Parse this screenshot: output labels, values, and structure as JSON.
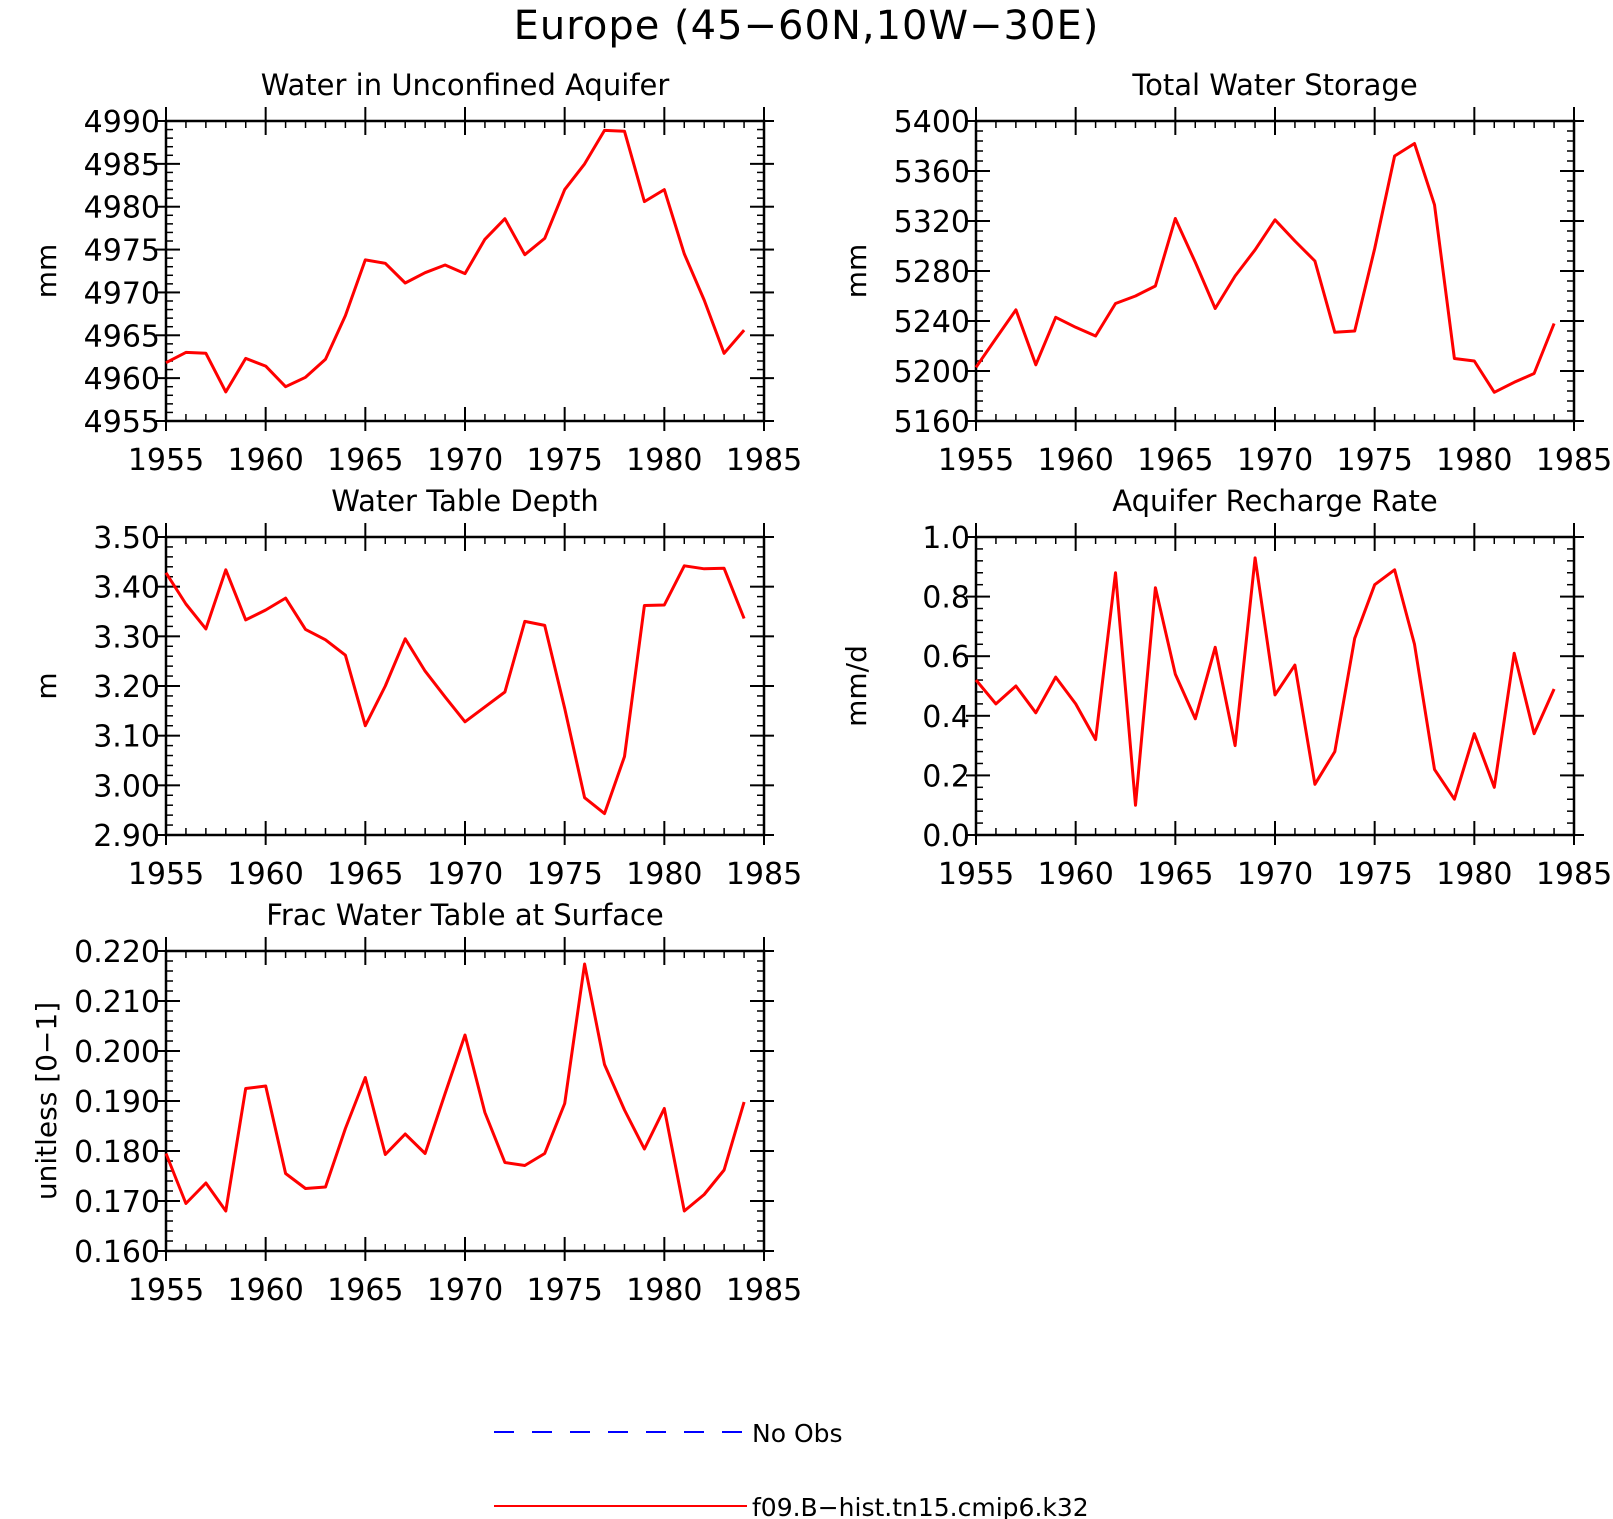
{
  "page_title": "Europe (45−60N,10W−30E)",
  "colors": {
    "model": "#ff0000",
    "obs": "#0000ff",
    "axis": "#000000",
    "background": "#ffffff"
  },
  "legend": {
    "obs_label": "No Obs",
    "model_label": "f09.B−hist.tn15.cmip6.k32"
  },
  "chart_data": [
    {
      "type": "line",
      "title": "Water in Unconfined Aquifer",
      "ylabel": "mm",
      "xlim": [
        1955,
        1985
      ],
      "ylim": [
        4955,
        4990
      ],
      "xticks": [
        1955,
        1960,
        1965,
        1970,
        1975,
        1980,
        1985
      ],
      "yticks": [
        4955,
        4960,
        4965,
        4970,
        4975,
        4980,
        4985,
        4990
      ],
      "ytick_labels": [
        "4955",
        "4960",
        "4965",
        "4970",
        "4975",
        "4980",
        "4985",
        "4990"
      ],
      "grid": false,
      "series": [
        {
          "name": "f09.B−hist.tn15.cmip6.k32",
          "x": [
            1955,
            1956,
            1957,
            1958,
            1959,
            1960,
            1961,
            1962,
            1963,
            1964,
            1965,
            1966,
            1967,
            1968,
            1969,
            1970,
            1971,
            1972,
            1973,
            1974,
            1975,
            1976,
            1977,
            1978,
            1979,
            1980,
            1981,
            1982,
            1983,
            1984
          ],
          "y": [
            4961.8,
            4963.0,
            4962.9,
            4958.4,
            4962.3,
            4961.4,
            4959.0,
            4960.1,
            4962.2,
            4967.3,
            4973.8,
            4973.4,
            4971.1,
            4972.3,
            4973.2,
            4972.2,
            4976.2,
            4978.6,
            4974.4,
            4976.3,
            4982.0,
            4985.0,
            4988.9,
            4988.8,
            4980.6,
            4982.0,
            4974.5,
            4969.1,
            4962.9,
            4965.6
          ]
        }
      ]
    },
    {
      "type": "line",
      "title": "Total Water Storage",
      "ylabel": "mm",
      "xlim": [
        1955,
        1985
      ],
      "ylim": [
        5160,
        5400
      ],
      "xticks": [
        1955,
        1960,
        1965,
        1970,
        1975,
        1980,
        1985
      ],
      "yticks": [
        5160,
        5200,
        5240,
        5280,
        5320,
        5360,
        5400
      ],
      "ytick_labels": [
        "5160",
        "5200",
        "5240",
        "5280",
        "5320",
        "5360",
        "5400"
      ],
      "grid": false,
      "series": [
        {
          "name": "f09.B−hist.tn15.cmip6.k32",
          "x": [
            1955,
            1956,
            1957,
            1958,
            1959,
            1960,
            1961,
            1962,
            1963,
            1964,
            1965,
            1966,
            1967,
            1968,
            1969,
            1970,
            1971,
            1972,
            1973,
            1974,
            1975,
            1976,
            1977,
            1978,
            1979,
            1980,
            1981,
            1982,
            1983,
            1984
          ],
          "y": [
            5203,
            5226,
            5249,
            5205,
            5243,
            5235,
            5228,
            5254,
            5260,
            5268,
            5322,
            5287,
            5250,
            5276,
            5297,
            5321,
            5304,
            5288,
            5231,
            5232,
            5298,
            5372,
            5382,
            5333,
            5210,
            5208,
            5183,
            5191,
            5198,
            5238
          ]
        }
      ]
    },
    {
      "type": "line",
      "title": "Water Table Depth",
      "ylabel": "m",
      "xlim": [
        1955,
        1985
      ],
      "ylim": [
        2.9,
        3.5
      ],
      "xticks": [
        1955,
        1960,
        1965,
        1970,
        1975,
        1980,
        1985
      ],
      "yticks": [
        2.9,
        3.0,
        3.1,
        3.2,
        3.3,
        3.4,
        3.5
      ],
      "ytick_labels": [
        "2.90",
        "3.00",
        "3.10",
        "3.20",
        "3.30",
        "3.40",
        "3.50"
      ],
      "grid": false,
      "series": [
        {
          "name": "f09.B−hist.tn15.cmip6.k32",
          "x": [
            1955,
            1956,
            1957,
            1958,
            1959,
            1960,
            1961,
            1962,
            1963,
            1964,
            1965,
            1966,
            1967,
            1968,
            1969,
            1970,
            1971,
            1972,
            1973,
            1974,
            1975,
            1976,
            1977,
            1978,
            1979,
            1980,
            1981,
            1982,
            1983,
            1984
          ],
          "y": [
            3.428,
            3.365,
            3.315,
            3.434,
            3.333,
            3.353,
            3.377,
            3.314,
            3.293,
            3.262,
            3.12,
            3.2,
            3.295,
            3.23,
            3.178,
            3.128,
            3.158,
            3.188,
            3.33,
            3.322,
            3.155,
            2.975,
            2.943,
            3.058,
            3.362,
            3.363,
            3.442,
            3.436,
            3.437,
            3.336
          ]
        }
      ]
    },
    {
      "type": "line",
      "title": "Aquifer Recharge Rate",
      "ylabel": "mm/d",
      "xlim": [
        1955,
        1985
      ],
      "ylim": [
        0.0,
        1.0
      ],
      "xticks": [
        1955,
        1960,
        1965,
        1970,
        1975,
        1980,
        1985
      ],
      "yticks": [
        0.0,
        0.2,
        0.4,
        0.6,
        0.8,
        1.0
      ],
      "ytick_labels": [
        "0.0",
        "0.2",
        "0.4",
        "0.6",
        "0.8",
        "1.0"
      ],
      "grid": false,
      "series": [
        {
          "name": "f09.B−hist.tn15.cmip6.k32",
          "x": [
            1955,
            1956,
            1957,
            1958,
            1959,
            1960,
            1961,
            1962,
            1963,
            1964,
            1965,
            1966,
            1967,
            1968,
            1969,
            1970,
            1971,
            1972,
            1973,
            1974,
            1975,
            1976,
            1977,
            1978,
            1979,
            1980,
            1981,
            1982,
            1983,
            1984
          ],
          "y": [
            0.52,
            0.44,
            0.5,
            0.41,
            0.53,
            0.44,
            0.32,
            0.88,
            0.1,
            0.83,
            0.54,
            0.39,
            0.63,
            0.3,
            0.93,
            0.47,
            0.57,
            0.17,
            0.28,
            0.66,
            0.84,
            0.89,
            0.64,
            0.22,
            0.12,
            0.34,
            0.16,
            0.61,
            0.34,
            0.49
          ]
        }
      ]
    },
    {
      "type": "line",
      "title": "Frac Water Table at Surface",
      "ylabel": "unitless [0−1]",
      "xlim": [
        1955,
        1985
      ],
      "ylim": [
        0.16,
        0.22
      ],
      "xticks": [
        1955,
        1960,
        1965,
        1970,
        1975,
        1980,
        1985
      ],
      "yticks": [
        0.16,
        0.17,
        0.18,
        0.19,
        0.2,
        0.21,
        0.22
      ],
      "ytick_labels": [
        "0.160",
        "0.170",
        "0.180",
        "0.190",
        "0.200",
        "0.210",
        "0.220"
      ],
      "grid": false,
      "series": [
        {
          "name": "f09.B−hist.tn15.cmip6.k32",
          "x": [
            1955,
            1956,
            1957,
            1958,
            1959,
            1960,
            1961,
            1962,
            1963,
            1964,
            1965,
            1966,
            1967,
            1968,
            1969,
            1970,
            1971,
            1972,
            1973,
            1974,
            1975,
            1976,
            1977,
            1978,
            1979,
            1980,
            1981,
            1982,
            1983,
            1984
          ],
          "y": [
            0.1795,
            0.1695,
            0.1736,
            0.168,
            0.1925,
            0.193,
            0.1755,
            0.1725,
            0.1728,
            0.1845,
            0.1947,
            0.1793,
            0.1834,
            0.1795,
            0.1915,
            0.2032,
            0.1877,
            0.1777,
            0.1771,
            0.1795,
            0.1895,
            0.2174,
            0.1973,
            0.1882,
            0.1804,
            0.1885,
            0.168,
            0.1713,
            0.1762,
            0.1898
          ]
        }
      ]
    }
  ]
}
